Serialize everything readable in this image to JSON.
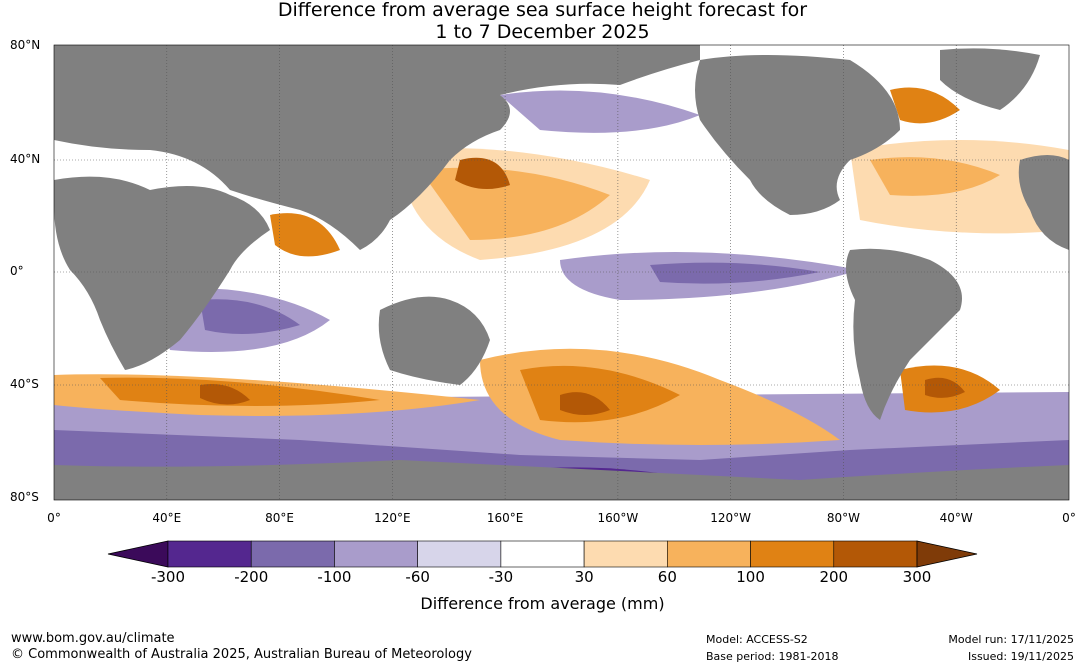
{
  "title": {
    "line1": "Difference from average sea surface height forecast for",
    "line2": "1 to 7 December 2025"
  },
  "map": {
    "lat_labels": [
      "80°N",
      "40°N",
      "0°",
      "40°S",
      "80°S"
    ],
    "lon_labels": [
      "0°",
      "40°E",
      "80°E",
      "120°E",
      "160°E",
      "160°W",
      "120°W",
      "80°W",
      "40°W",
      "0°"
    ],
    "land_color": "#808080",
    "ocean_base_color": "#ffffff"
  },
  "legend": {
    "title": "Difference from average (mm)",
    "tick_labels": [
      "-300",
      "-200",
      "-100",
      "-60",
      "-30",
      "30",
      "60",
      "100",
      "200",
      "300"
    ],
    "colors": [
      "#3b0a5a",
      "#54278f",
      "#7b6aac",
      "#a99ccb",
      "#d7d5ea",
      "#ffffff",
      "#fddbb0",
      "#f7b25c",
      "#e08214",
      "#b35806",
      "#7f3b08"
    ]
  },
  "footer": {
    "url": "www.bom.gov.au/climate",
    "copyright": "© Commonwealth of Australia 2025, Australian Bureau of Meteorology",
    "model": "Model: ACCESS-S2",
    "base_period": "Base period: 1981-2018",
    "model_run": "Model run: 17/11/2025",
    "issued": "Issued: 19/11/2025"
  }
}
